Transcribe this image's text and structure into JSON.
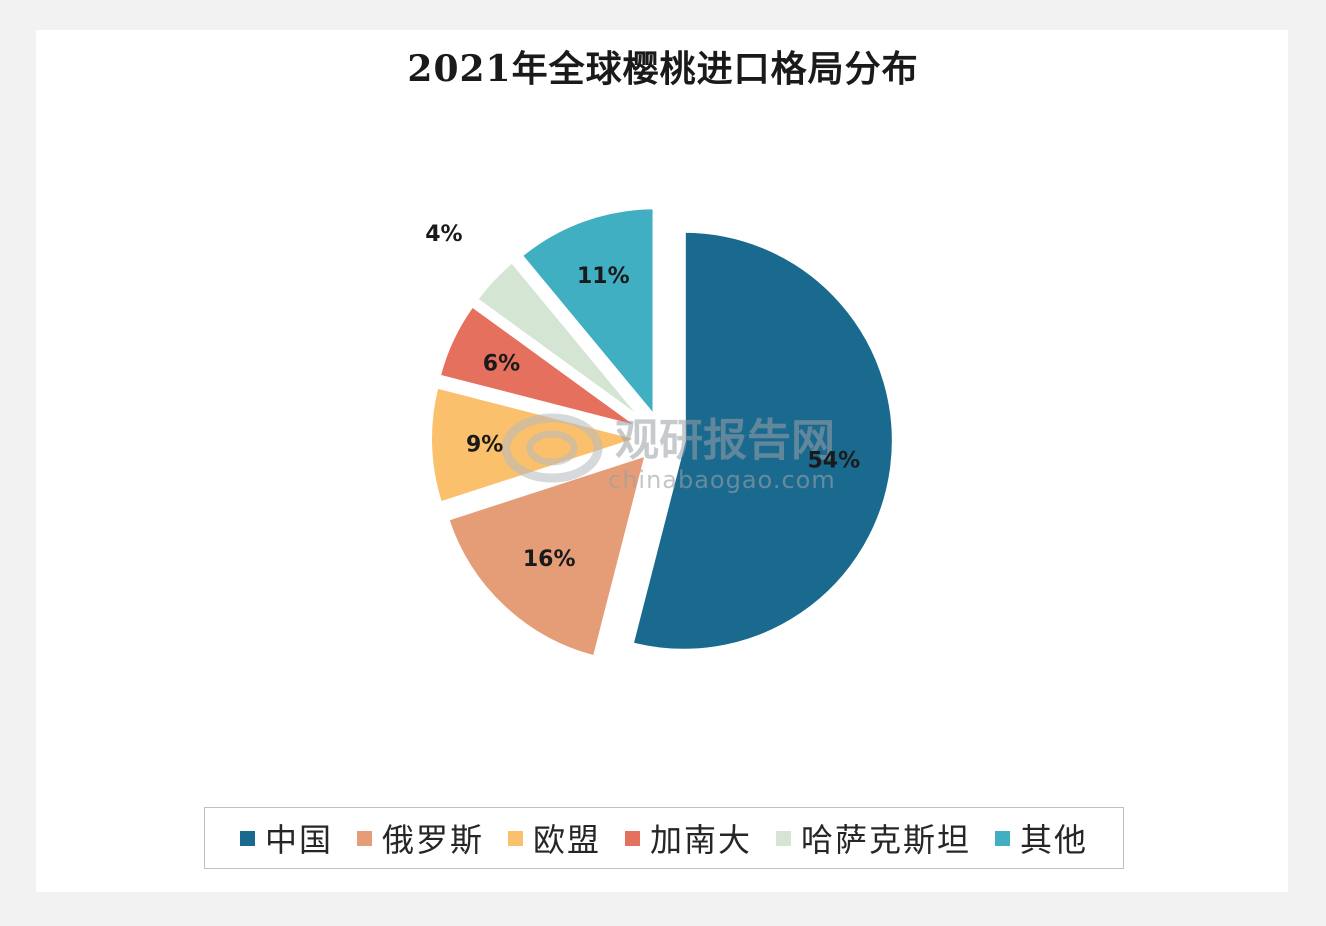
{
  "chart_data": {
    "type": "pie",
    "title": "2021年全球樱桃进口格局分布",
    "categories": [
      "中国",
      "俄罗斯",
      "欧盟",
      "加南大",
      "哈萨克斯坦",
      "其他"
    ],
    "values": [
      54,
      16,
      9,
      6,
      4,
      11
    ],
    "value_labels": [
      "54%",
      "16%",
      "9%",
      "6%",
      "4%",
      "11%"
    ],
    "colors": [
      "#1a6a8f",
      "#e59d77",
      "#fbc06b",
      "#e5705d",
      "#d5e5d3",
      "#40afc1"
    ],
    "exploded": true,
    "legend_position": "bottom"
  },
  "watermark": {
    "name": "观研报告网",
    "url": "chinabaogao.com"
  }
}
